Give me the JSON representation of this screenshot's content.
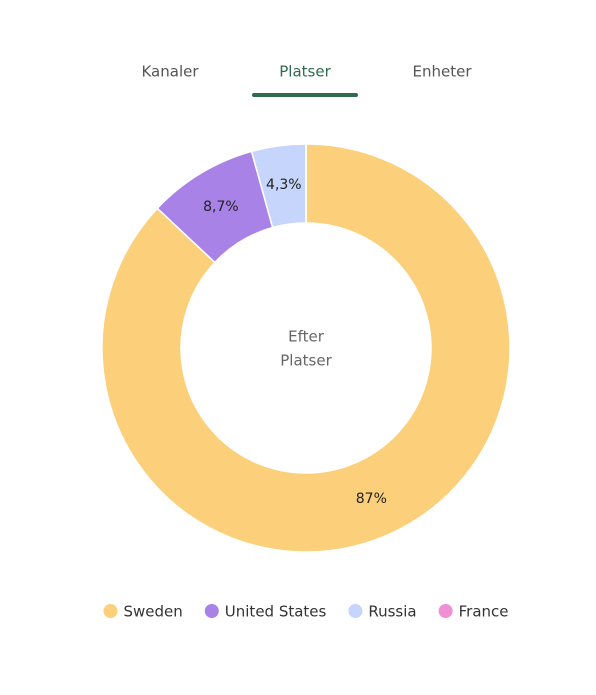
{
  "tabs": {
    "items": [
      "Kanaler",
      "Platser",
      "Enheter"
    ],
    "active": 1
  },
  "chart_data": {
    "type": "pie",
    "donut": true,
    "center_text": [
      "Efter",
      "Platser"
    ],
    "categories": [
      "Sweden",
      "United States",
      "Russia",
      "France"
    ],
    "values": [
      87,
      8.7,
      4.3,
      0
    ],
    "value_labels": [
      "87%",
      "8,7%",
      "4,3%",
      null
    ],
    "colors": [
      "#fccf7a",
      "#a982e8",
      "#c5d5fb",
      "#f08ed6"
    ]
  }
}
